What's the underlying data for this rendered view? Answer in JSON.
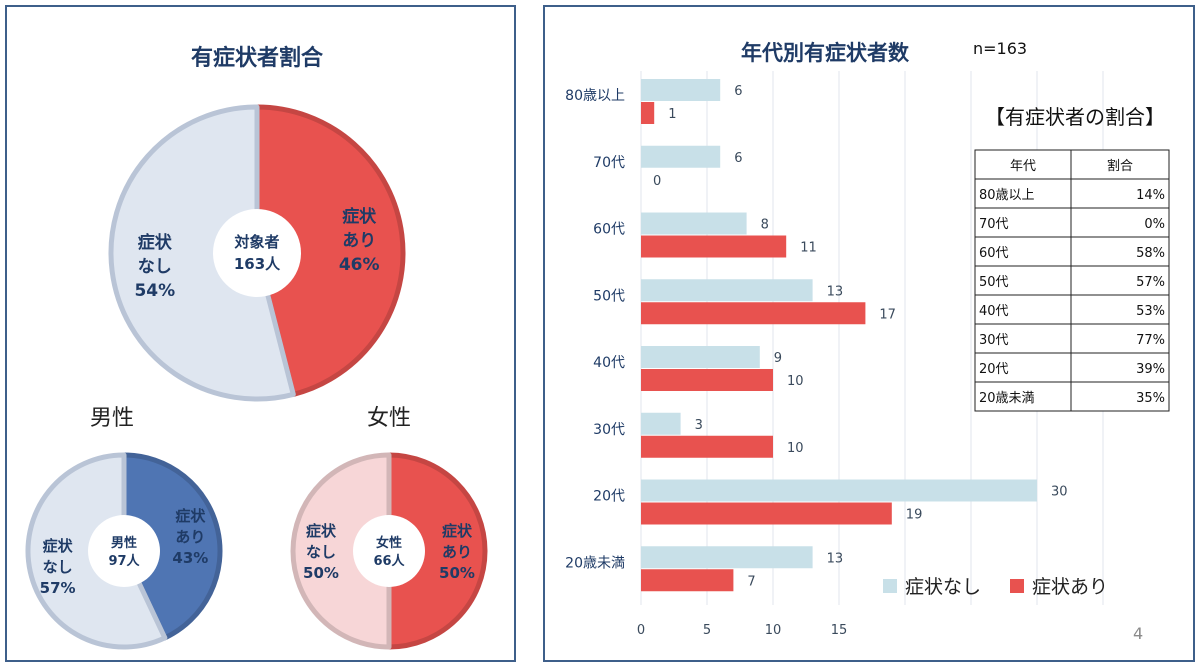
{
  "colors": {
    "with_symptom": "#e8524f",
    "without_symptom": "#dfe6f0",
    "male_with": "#4f75b3",
    "male_without": "#dfe6f0",
    "female_with": "#e8524f",
    "female_without": "#f7d6d7",
    "bar_without": "#c8e0e8",
    "bar_with": "#e8524f",
    "border": "#3e5f8a",
    "title": "#1f3b66"
  },
  "chart_data": [
    {
      "type": "pie",
      "title": "有症状者割合",
      "center": [
        "対象者",
        "163人"
      ],
      "slices": [
        {
          "label": [
            "症状",
            "あり"
          ],
          "value": 46,
          "pct_label": "46%",
          "color": "#e8524f",
          "text_color": "#1f3b66"
        },
        {
          "label": [
            "症状",
            "なし"
          ],
          "value": 54,
          "pct_label": "54%",
          "color": "#dfe6f0",
          "text_color": "#1f3b66"
        }
      ]
    },
    {
      "type": "pie",
      "title": "男性",
      "center": [
        "男性",
        "97人"
      ],
      "slices": [
        {
          "label": [
            "症状",
            "あり"
          ],
          "value": 43,
          "pct_label": "43%",
          "color": "#4f75b3",
          "text_color": "#1f3b66"
        },
        {
          "label": [
            "症状",
            "なし"
          ],
          "value": 57,
          "pct_label": "57%",
          "color": "#dfe6f0",
          "text_color": "#1f3b66"
        }
      ]
    },
    {
      "type": "pie",
      "title": "女性",
      "center": [
        "女性",
        "66人"
      ],
      "slices": [
        {
          "label": [
            "症状",
            "あり"
          ],
          "value": 50,
          "pct_label": "50%",
          "color": "#e8524f",
          "text_color": "#1f3b66"
        },
        {
          "label": [
            "症状",
            "なし"
          ],
          "value": 50,
          "pct_label": "50%",
          "color": "#f7d6d7",
          "text_color": "#1f3b66"
        }
      ]
    },
    {
      "type": "bar",
      "orientation": "horizontal",
      "title": "年代別有症状者数",
      "note": "n=163",
      "categories": [
        "80歳以上",
        "70代",
        "60代",
        "50代",
        "40代",
        "30代",
        "20代",
        "20歳未満"
      ],
      "series": [
        {
          "name": "症状なし",
          "values": [
            6,
            6,
            8,
            13,
            9,
            3,
            30,
            13
          ],
          "color": "#c8e0e8"
        },
        {
          "name": "症状あり",
          "values": [
            1,
            0,
            11,
            17,
            10,
            10,
            19,
            7
          ],
          "color": "#e8524f"
        }
      ],
      "xticks": [
        0,
        5,
        10,
        15
      ],
      "xlim": [
        0,
        35
      ],
      "gridlines": [
        0,
        5,
        10,
        15,
        20,
        25,
        30,
        35
      ],
      "legend": "bottom-right"
    },
    {
      "type": "table",
      "title": "【有症状者の割合】",
      "columns": [
        "年代",
        "割合"
      ],
      "rows": [
        [
          "80歳以上",
          "14%"
        ],
        [
          "70代",
          "0%"
        ],
        [
          "60代",
          "58%"
        ],
        [
          "50代",
          "57%"
        ],
        [
          "40代",
          "53%"
        ],
        [
          "30代",
          "77%"
        ],
        [
          "20代",
          "39%"
        ],
        [
          "20歳未満",
          "35%"
        ]
      ]
    }
  ],
  "page_number": "4"
}
